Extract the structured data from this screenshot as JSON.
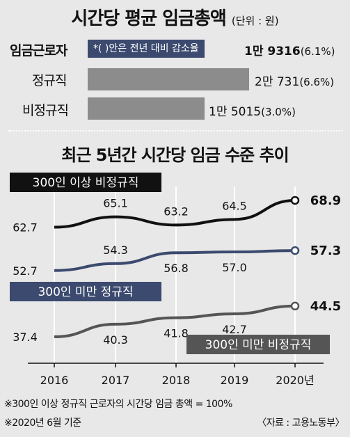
{
  "header": {
    "title": "시간당 평균 임금총액",
    "unit": "(단위 : 원)"
  },
  "summary": {
    "legend_label": "*( )안은 전년 대비 감소율",
    "rows": [
      {
        "label": "임금근로자",
        "value_text": "1만 9316",
        "pct_text": "(6.1%)",
        "bar_fraction": null
      },
      {
        "label": "정규직",
        "value_text": "2만 731",
        "pct_text": "(6.6%)",
        "bar_fraction": 1.0
      },
      {
        "label": "비정규직",
        "value_text": "1만 5015",
        "pct_text": "(3.0%)",
        "bar_fraction": 0.724
      }
    ]
  },
  "chart_data": {
    "type": "line",
    "title": "최근 5년간 시간당 임금 수준 추이",
    "categories": [
      "2016",
      "2017",
      "2018",
      "2019",
      "2020년"
    ],
    "ylim": [
      30,
      75
    ],
    "series": [
      {
        "name": "300인 이상 비정규직",
        "values": [
          62.7,
          65.1,
          63.2,
          64.5,
          68.9
        ],
        "color": "#111111"
      },
      {
        "name": "300인 미만 정규직",
        "values": [
          52.7,
          54.3,
          56.8,
          57.0,
          57.3
        ],
        "color": "#3b4a6e"
      },
      {
        "name": "300인 미만 비정규직",
        "values": [
          37.4,
          40.3,
          41.8,
          42.7,
          44.5
        ],
        "color": "#555555"
      }
    ]
  },
  "footnotes": {
    "note1": "※300인 이상 정규직 근로자의 시간당 임금 총액 = 100%",
    "note2": "※2020년 6월 기준",
    "source": "〈자료 : 고용노동부〉"
  }
}
